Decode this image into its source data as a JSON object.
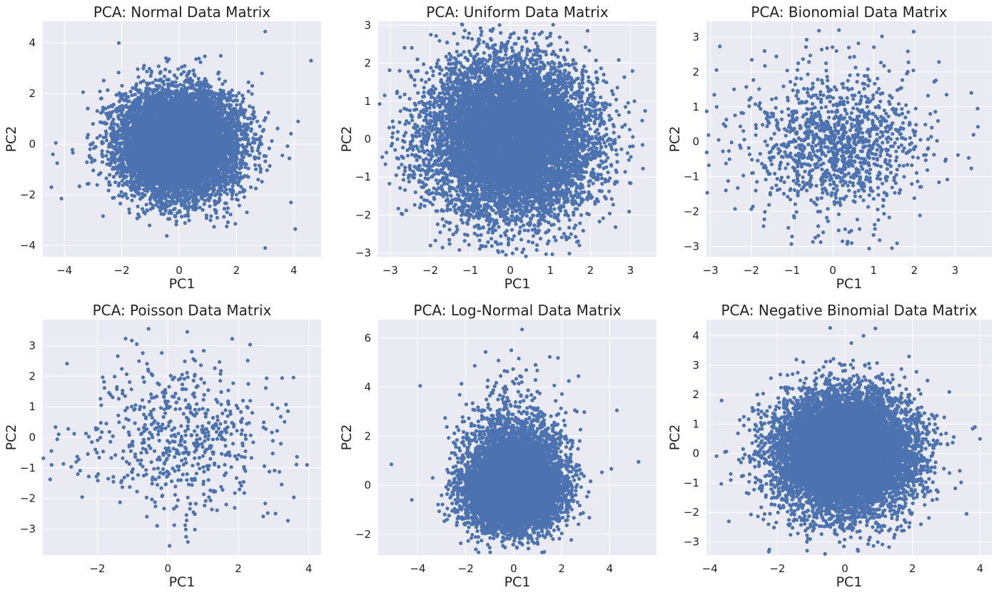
{
  "chart_data": [
    {
      "type": "scatter",
      "title": "PCA: Normal Data Matrix",
      "xlabel": "PC1",
      "ylabel": "PC2",
      "xlim": [
        -4.75,
        4.95
      ],
      "ylim": [
        -4.45,
        4.85
      ],
      "xticks": [
        -4,
        -2,
        0,
        2,
        4
      ],
      "yticks": [
        -4,
        -2,
        0,
        2,
        4
      ],
      "xtick_labels": [
        "−4",
        "−2",
        "0",
        "2",
        "4"
      ],
      "ytick_labels": [
        "−4",
        "−2",
        "0",
        "2",
        "4"
      ],
      "grid": true,
      "color": "#4c72b0",
      "distribution": {
        "shape": "gaussian",
        "n": 10000,
        "x_center": 0,
        "y_center": 0,
        "x_spread": 1.0,
        "y_spread": 1.0
      },
      "outliers": [
        [
          -4.4,
          -0.4
        ],
        [
          -4.3,
          0.05
        ],
        [
          -4.25,
          -0.75
        ],
        [
          -4.45,
          -1.7
        ],
        [
          -4.1,
          -2.15
        ],
        [
          3.0,
          4.45
        ],
        [
          4.6,
          3.3
        ],
        [
          3.0,
          -4.1
        ],
        [
          4.05,
          -3.35
        ],
        [
          4.15,
          0.9
        ],
        [
          -2.1,
          4.0
        ],
        [
          3.9,
          -2.3
        ]
      ]
    },
    {
      "type": "scatter",
      "title": "PCA: Uniform Data Matrix",
      "xlabel": "PC1",
      "ylabel": "PC2",
      "xlim": [
        -3.3,
        3.65
      ],
      "ylim": [
        -3.1,
        3.1
      ],
      "xticks": [
        -3,
        -2,
        -1,
        0,
        1,
        2,
        3
      ],
      "yticks": [
        -3,
        -2,
        -1,
        0,
        1,
        2,
        3
      ],
      "xtick_labels": [
        "−3",
        "−2",
        "−1",
        "0",
        "1",
        "2",
        "3"
      ],
      "ytick_labels": [
        "−3",
        "−2",
        "−1",
        "0",
        "1",
        "2",
        "3"
      ],
      "grid": true,
      "color": "#4c72b0",
      "distribution": {
        "shape": "gaussian",
        "n": 10000,
        "x_center": 0,
        "y_center": 0,
        "x_spread": 1.0,
        "y_spread": 1.0
      },
      "outliers": [
        [
          -2.95,
          0.05
        ],
        [
          3.3,
          -0.15
        ],
        [
          0.4,
          2.85
        ],
        [
          -2.85,
          -0.95
        ],
        [
          3.1,
          1.0
        ]
      ]
    },
    {
      "type": "scatter",
      "title": "PCA: Bionomial Data Matrix",
      "xlabel": "PC1",
      "ylabel": "PC2",
      "xlim": [
        -3.1,
        3.9
      ],
      "ylim": [
        -3.3,
        3.45
      ],
      "xticks": [
        -3,
        -2,
        -1,
        0,
        1,
        2,
        3
      ],
      "yticks": [
        -3,
        -2,
        -1,
        0,
        1,
        2,
        3
      ],
      "xtick_labels": [
        "−3",
        "−2",
        "−1",
        "0",
        "1",
        "2",
        "3"
      ],
      "ytick_labels": [
        "−3",
        "−2",
        "−1",
        "0",
        "1",
        "2",
        "3"
      ],
      "grid": true,
      "color": "#4c72b0",
      "distribution": {
        "shape": "gaussian",
        "n": 1200,
        "x_center": 0.1,
        "y_center": 0,
        "x_spread": 1.1,
        "y_spread": 1.05
      },
      "outliers": [
        [
          0.15,
          3.2
        ],
        [
          -2.85,
          1.0
        ],
        [
          3.55,
          0.95
        ],
        [
          1.45,
          -3.05
        ],
        [
          3.45,
          0.2
        ],
        [
          -2.8,
          0.05
        ]
      ]
    },
    {
      "type": "scatter",
      "title": "PCA: Poisson Data Matrix",
      "xlabel": "PC1",
      "ylabel": "PC2",
      "xlim": [
        -3.55,
        4.35
      ],
      "ylim": [
        -3.85,
        3.85
      ],
      "xticks": [
        -2,
        0,
        2,
        4
      ],
      "yticks": [
        -3,
        -2,
        -1,
        0,
        1,
        2,
        3
      ],
      "xtick_labels": [
        "−2",
        "0",
        "2",
        "4"
      ],
      "ytick_labels": [
        "−3",
        "−2",
        "−1",
        "0",
        "1",
        "2",
        "3"
      ],
      "grid": true,
      "color": "#4c72b0",
      "distribution": {
        "shape": "gaussian",
        "n": 600,
        "x_center": 0.3,
        "y_center": 0,
        "x_spread": 1.35,
        "y_spread": 1.2
      },
      "outliers": [
        [
          -0.55,
          3.55
        ],
        [
          0.55,
          3.45
        ],
        [
          -3.3,
          -0.9
        ],
        [
          3.95,
          -0.9
        ],
        [
          0.05,
          -3.55
        ],
        [
          -3.1,
          0.1
        ]
      ]
    },
    {
      "type": "scatter",
      "title": "PCA: Log-Normal Data Matrix",
      "xlabel": "PC1",
      "ylabel": "PC2",
      "xlim": [
        -5.65,
        5.95
      ],
      "ylim": [
        -2.85,
        6.75
      ],
      "xticks": [
        -4,
        -2,
        0,
        2,
        4
      ],
      "yticks": [
        -2,
        0,
        2,
        4,
        6
      ],
      "xtick_labels": [
        "−4",
        "−2",
        "0",
        "2",
        "4"
      ],
      "ytick_labels": [
        "−2",
        "0",
        "2",
        "4",
        "6"
      ],
      "grid": true,
      "color": "#4c72b0",
      "distribution": {
        "shape": "skewed",
        "n": 10000,
        "x_center": 0,
        "y_center": 0,
        "x_spread": 0.95,
        "y_spread": 0.85
      },
      "outliers": [
        [
          0.35,
          6.35
        ],
        [
          -0.1,
          5.5
        ],
        [
          -3.9,
          4.05
        ],
        [
          2.7,
          4.45
        ],
        [
          -5.1,
          0.85
        ],
        [
          5.2,
          0.95
        ],
        [
          -4.25,
          -0.6
        ],
        [
          4.3,
          3.05
        ]
      ]
    },
    {
      "type": "scatter",
      "title": "PCA: Negative Binomial Data Matrix",
      "xlabel": "PC1",
      "ylabel": "PC2",
      "xlim": [
        -4.1,
        4.35
      ],
      "ylim": [
        -3.45,
        4.55
      ],
      "xticks": [
        -4,
        -2,
        0,
        2,
        4
      ],
      "yticks": [
        -3,
        -2,
        -1,
        0,
        1,
        2,
        3,
        4
      ],
      "xtick_labels": [
        "−4",
        "−2",
        "0",
        "2",
        "4"
      ],
      "ytick_labels": [
        "−3",
        "−2",
        "−1",
        "0",
        "1",
        "2",
        "3",
        "4"
      ],
      "grid": true,
      "color": "#4c72b0",
      "distribution": {
        "shape": "gaussian",
        "n": 10000,
        "x_center": 0,
        "y_center": 0,
        "x_spread": 1.0,
        "y_spread": 1.0
      },
      "outliers": [
        [
          0.9,
          4.25
        ],
        [
          0.55,
          4.0
        ],
        [
          -3.65,
          1.8
        ],
        [
          -3.55,
          0.05
        ],
        [
          3.85,
          0.9
        ],
        [
          4.0,
          0.5
        ],
        [
          1.9,
          3.3
        ],
        [
          -2.6,
          2.0
        ],
        [
          3.6,
          -2.05
        ]
      ]
    }
  ]
}
